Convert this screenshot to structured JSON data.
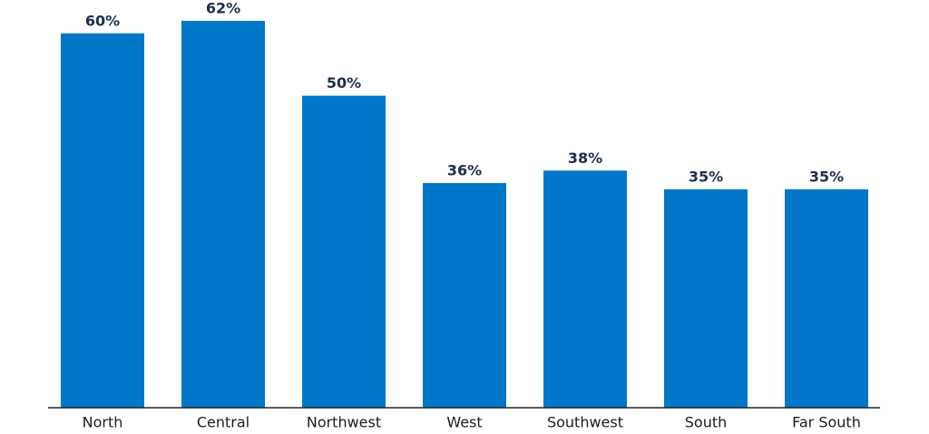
{
  "chart_data": {
    "type": "bar",
    "categories": [
      "North",
      "Central",
      "Northwest",
      "West",
      "Southwest",
      "South",
      "Far South"
    ],
    "values": [
      60,
      62,
      50,
      36,
      38,
      35,
      35
    ],
    "value_labels": [
      "60%",
      "62%",
      "50%",
      "36%",
      "38%",
      "35%",
      "35%"
    ],
    "color": "#0077c8"
  }
}
